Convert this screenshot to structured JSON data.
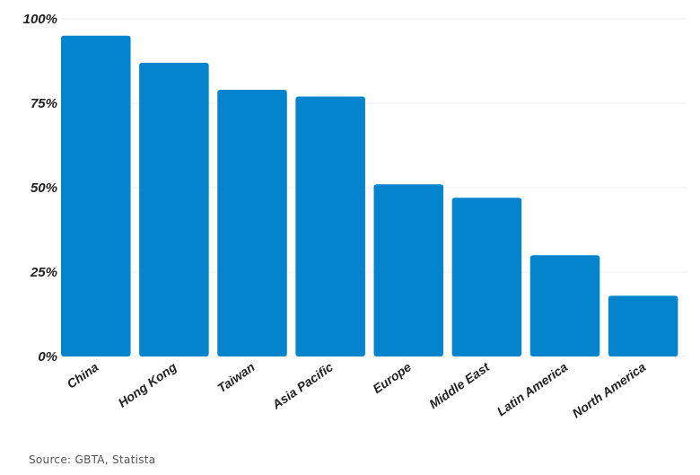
{
  "chart_data": {
    "type": "bar",
    "categories": [
      "China",
      "Hong Kong",
      "Taiwan",
      "Asia Pacific",
      "Europe",
      "Middle East",
      "Latin America",
      "North America"
    ],
    "values": [
      95,
      87,
      79,
      77,
      51,
      47,
      30,
      18
    ],
    "yticks": [
      "0%",
      "25%",
      "50%",
      "75%",
      "100%"
    ],
    "ylim": [
      0,
      100
    ],
    "grid": true,
    "bar_color": "#0484cc",
    "title": "",
    "xlabel": "",
    "ylabel": ""
  },
  "source": "Source: GBTA, Statista"
}
